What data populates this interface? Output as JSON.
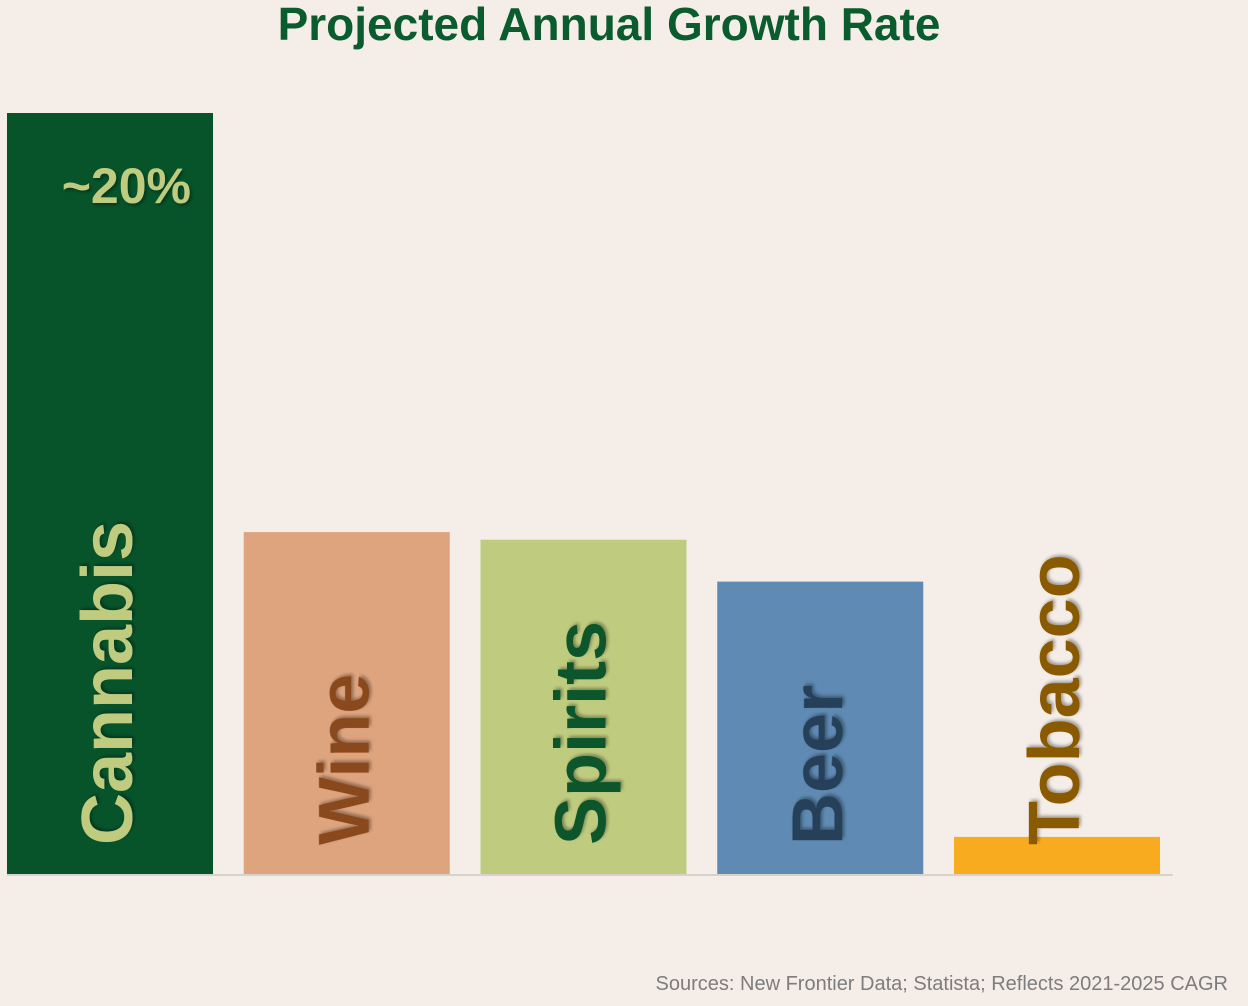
{
  "title": "Projected Annual Growth Rate",
  "source": "Sources: New Frontier Data; Statista; Reflects 2021-2025 CAGR",
  "chart_data": {
    "type": "bar",
    "title": "Projected Annual Growth Rate",
    "categories": [
      "Cannabis",
      "Wine",
      "Spirits",
      "Beer",
      "Tobacco"
    ],
    "values": [
      20,
      9,
      8.8,
      7.7,
      1
    ],
    "unit": "%",
    "value_labels": [
      "~20%",
      "",
      "",
      "",
      ""
    ],
    "bar_colors": [
      "#07542b",
      "#dea47e",
      "#bfcc7f",
      "#5e8ab3",
      "#f8ab1e"
    ],
    "label_colors": [
      "#bfcc7f",
      "#8a4a1e",
      "#07542b",
      "#263f5a",
      "#8a5a00"
    ],
    "ylim": [
      0,
      20
    ],
    "xlabel": "",
    "ylabel": "",
    "grid": false,
    "legend": "none"
  }
}
